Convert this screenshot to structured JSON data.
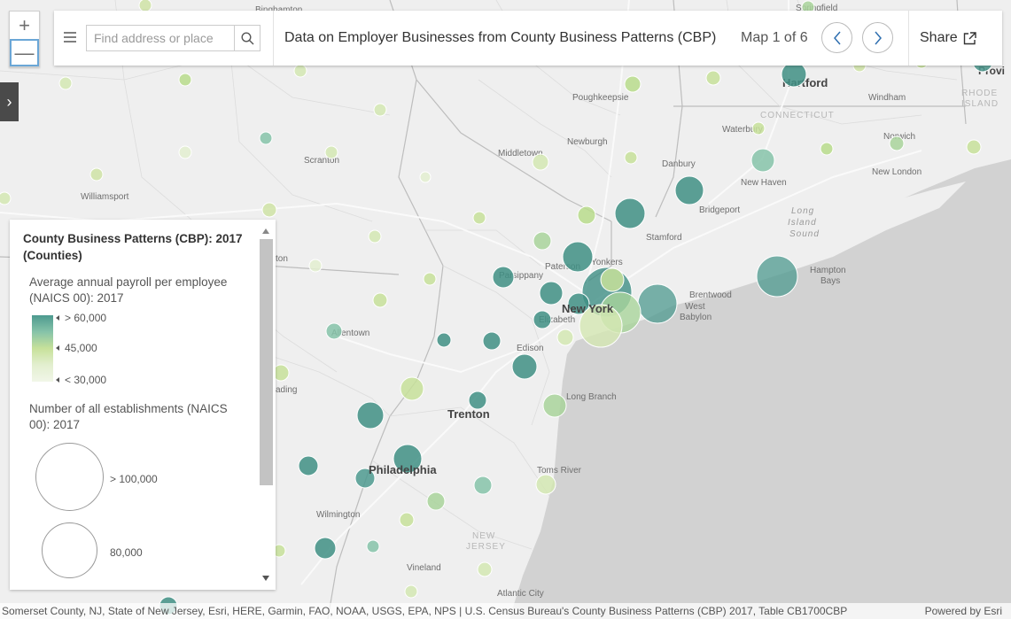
{
  "header": {
    "search_placeholder": "Find address or place",
    "title": "Data on Employer Businesses from County Business Patterns (CBP)",
    "map_count": "Map 1 of 6",
    "share_label": "Share",
    "icons": {
      "menu": "hamburger-icon",
      "search": "search-icon",
      "prev": "chevron-left-icon",
      "next": "chevron-right-icon",
      "share": "external-link-icon"
    }
  },
  "zoom": {
    "in_label": "+",
    "out_label": "—"
  },
  "side_toggle": {
    "label": "›"
  },
  "legend": {
    "title": "County Business Patterns (CBP): 2017 (Counties)",
    "color_field": "Average annual payroll per employee (NAICS 00): 2017",
    "color_ramp": [
      {
        "label": "> 60,000",
        "color": "#4d9a8f"
      },
      {
        "label": "45,000",
        "color": "#c7e19a"
      },
      {
        "label": "< 30,000",
        "color": "#f1f6e8"
      }
    ],
    "size_field": "Number of all establishments (NAICS 00): 2017",
    "size_classes": [
      {
        "label": "> 100,000"
      },
      {
        "label": "80,000"
      }
    ]
  },
  "map_labels": {
    "binghamton": "Binghamton",
    "springfield": "Springfield",
    "hartford": "Hartford",
    "providence": "Provi",
    "poughkeepsie": "Poughkeepsie",
    "windham": "Windham",
    "rhode": "RHODE",
    "island": "ISLAND",
    "connecticut": "CONNECTICUT",
    "newburgh": "Newburgh",
    "waterbury": "Waterbury",
    "norwich": "Norwich",
    "scranton": "Scranton",
    "middletown": "Middletown",
    "danbury": "Danbury",
    "new_london": "New London",
    "new_haven": "New Haven",
    "williamsport": "Williamsport",
    "bridgeport": "Bridgeport",
    "long": "Long",
    "island2": "Island",
    "sound": "Sound",
    "stamford": "Stamford",
    "yonkers": "Yonkers",
    "paterson": "Paterson",
    "hampton_bays": "Hampton",
    "bays": "Bays",
    "parsippany": "Parsippany",
    "brentwood": "Brentwood",
    "west_babylon_1": "West",
    "west_babylon_2": "Babylon",
    "new_york": "New York",
    "elizabeth": "Elizabeth",
    "allentown": "Allentown",
    "edison": "Edison",
    "reading": "ading",
    "long_branch": "Long Branch",
    "trenton": "Trenton",
    "philadelphia": "Philadelphia",
    "toms_river": "Toms River",
    "wilmington": "Wilmington",
    "new_jersey_1": "NEW",
    "new_jersey_2": "JERSEY",
    "vineland": "Vineland",
    "atlantic_city": "Atlantic City",
    "pa_partial": "ton"
  },
  "attribution": {
    "text": "Somerset County, NJ, State of New Jersey, Esri, HERE, Garmin, FAO, NOAA, USGS, EPA, NPS | U.S. Census Bureau's County Business Patterns (CBP) 2017, Table CB1700CBP",
    "powered": "Powered by Esri"
  }
}
